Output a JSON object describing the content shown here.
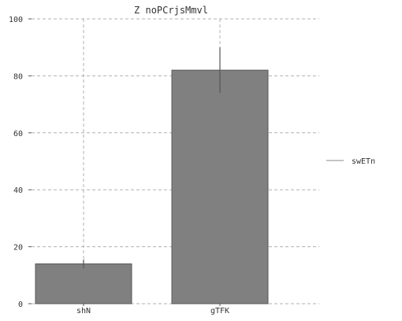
{
  "chart_data": {
    "type": "bar",
    "title": "Z noPCrjsMmvl",
    "xlabel": "",
    "ylabel": "",
    "categories": [
      "shN",
      "gTFK"
    ],
    "series": [
      {
        "name": "swETn",
        "values": [
          14,
          82
        ],
        "error": [
          1.5,
          8
        ],
        "color": "#808080"
      }
    ],
    "ylim": [
      0,
      100
    ],
    "yticks": [
      0,
      20,
      40,
      60,
      80,
      100
    ],
    "grid": true,
    "legend_position": "right"
  }
}
